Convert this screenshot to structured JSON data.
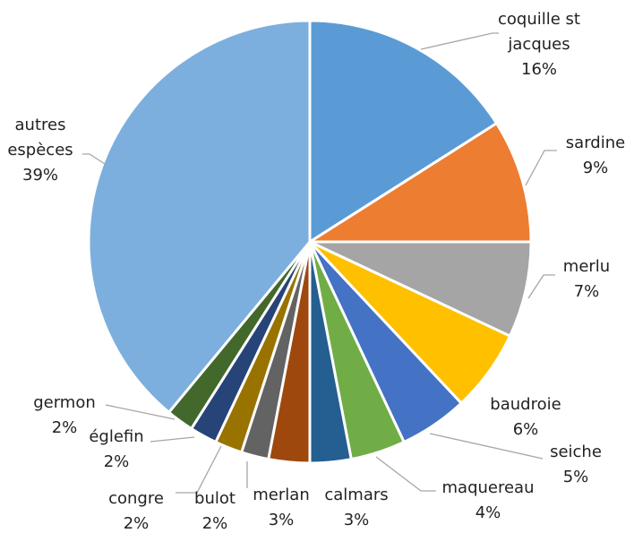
{
  "chart_data": {
    "type": "pie",
    "categories": [
      "coquille st jacques",
      "sardine",
      "merlu",
      "baudroie",
      "seiche",
      "maquereau",
      "calmars",
      "merlan",
      "bulot",
      "congre",
      "églefin",
      "germon",
      "autres espèces"
    ],
    "values": [
      16,
      9,
      7,
      6,
      5,
      4,
      3,
      3,
      2,
      2,
      2,
      2,
      39
    ],
    "value_labels": [
      "16%",
      "9%",
      "7%",
      "6%",
      "5%",
      "4%",
      "3%",
      "3%",
      "2%",
      "2%",
      "2%",
      "2%",
      "39%"
    ],
    "colors": [
      "#5b9bd5",
      "#ed7d31",
      "#a5a5a5",
      "#ffc000",
      "#4472c4",
      "#70ad47",
      "#255e91",
      "#9e480e",
      "#636363",
      "#997300",
      "#264478",
      "#43682b",
      "#7cafdd"
    ]
  }
}
